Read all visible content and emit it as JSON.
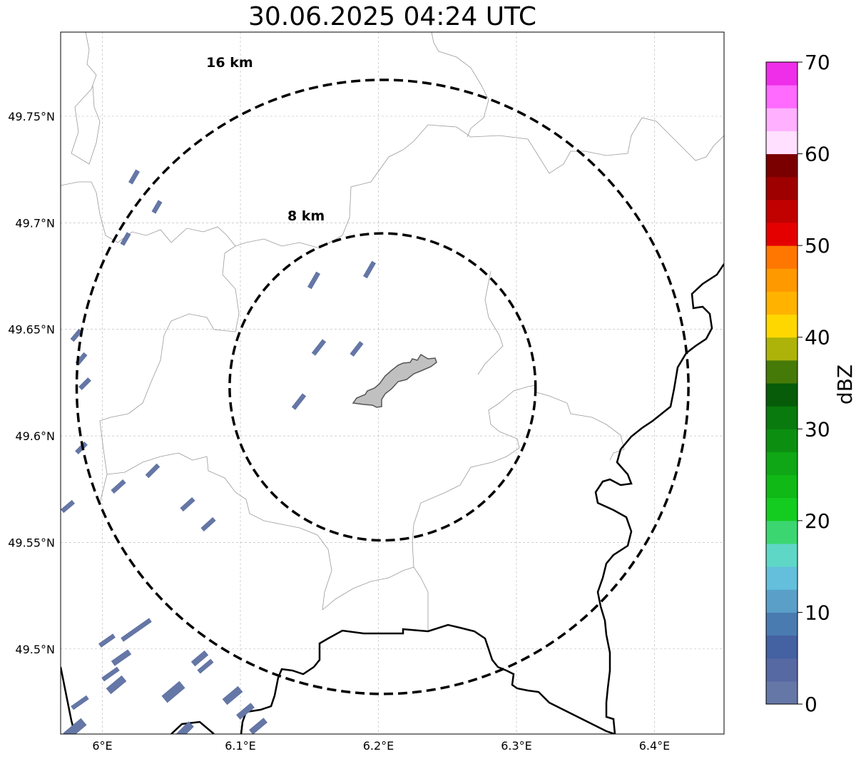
{
  "title": "30.06.2025 04:24 UTC",
  "map": {
    "lon_ticks": [
      {
        "value": 6.0,
        "label": "6°E"
      },
      {
        "value": 6.1,
        "label": "6.1°E"
      },
      {
        "value": 6.2,
        "label": "6.2°E"
      },
      {
        "value": 6.3,
        "label": "6.3°E"
      },
      {
        "value": 6.4,
        "label": "6.4°E"
      }
    ],
    "lat_ticks": [
      {
        "value": 49.75,
        "label": "49.75°N"
      },
      {
        "value": 49.7,
        "label": "49.7°N"
      },
      {
        "value": 49.65,
        "label": "49.65°N"
      },
      {
        "value": 49.6,
        "label": "49.6°N"
      },
      {
        "value": 49.55,
        "label": "49.55°N"
      },
      {
        "value": 49.5,
        "label": "49.5°N"
      }
    ],
    "range_rings": [
      {
        "label": "8 km",
        "radius_km": 8
      },
      {
        "label": "16 km",
        "radius_km": 16
      }
    ],
    "center": {
      "lon": 6.203,
      "lat": 49.623
    }
  },
  "colorbar": {
    "label": "dBZ",
    "min": 0,
    "max": 70,
    "tick_labels": [
      "0",
      "10",
      "20",
      "30",
      "40",
      "50",
      "60",
      "70"
    ],
    "colors": [
      "#6577a6",
      "#5669a3",
      "#4461a1",
      "#4a7bb0",
      "#5a9fc8",
      "#63bfdc",
      "#5fd7c7",
      "#3cd671",
      "#14cc1f",
      "#10b916",
      "#0fa715",
      "#0c8f11",
      "#097a0d",
      "#065c09",
      "#467a08",
      "#adb308",
      "#ffd700",
      "#ffb300",
      "#ff9900",
      "#ff7700",
      "#e50000",
      "#c10000",
      "#9e0000",
      "#7a0000",
      "#ffe0ff",
      "#ffb0ff",
      "#ff6aff",
      "#ee2ee8"
    ]
  }
}
